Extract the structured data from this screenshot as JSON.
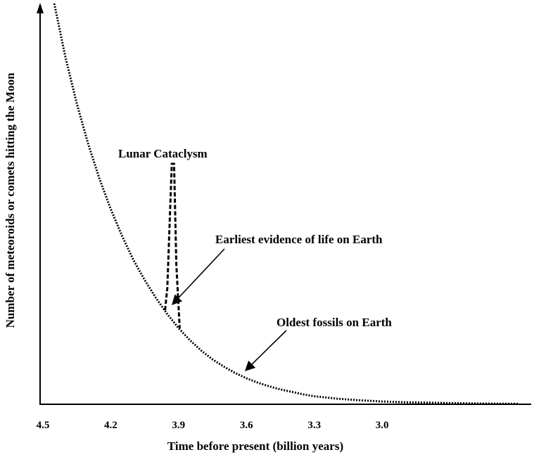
{
  "chart_data": {
    "type": "line",
    "title": "",
    "xlabel": "Time before present (billion years)",
    "ylabel": "Number of meteoroids or comets hitting the Moon",
    "xlim": [
      4.5,
      2.35
    ],
    "x_direction": "reversed",
    "x_ticks": [
      {
        "value": 4.5,
        "label": "4.5"
      },
      {
        "value": 4.2,
        "label": "4.2"
      },
      {
        "value": 3.9,
        "label": "3.9"
      },
      {
        "value": 3.6,
        "label": "3.6"
      },
      {
        "value": 3.3,
        "label": "3.3"
      },
      {
        "value": 3.0,
        "label": "3.0"
      }
    ],
    "y_ticks": "none",
    "grid": false,
    "legend": "none",
    "colors": {
      "line": "#000000",
      "background": "#ffffff"
    },
    "series": [
      {
        "style": "dotted",
        "points": [
          [
            4.45,
            1.0
          ],
          [
            4.4,
            0.865
          ],
          [
            4.35,
            0.75
          ],
          [
            4.3,
            0.65
          ],
          [
            4.25,
            0.563
          ],
          [
            4.2,
            0.487
          ],
          [
            4.15,
            0.42
          ],
          [
            4.1,
            0.36
          ],
          [
            4.05,
            0.31
          ],
          [
            4.0,
            0.265
          ],
          [
            3.95,
            0.225
          ],
          [
            3.9,
            0.19
          ],
          [
            3.85,
            0.16
          ],
          [
            3.8,
            0.134
          ],
          [
            3.75,
            0.112
          ],
          [
            3.7,
            0.094
          ],
          [
            3.65,
            0.078
          ],
          [
            3.6,
            0.065
          ],
          [
            3.55,
            0.054
          ],
          [
            3.5,
            0.045
          ],
          [
            3.45,
            0.037
          ],
          [
            3.4,
            0.031
          ],
          [
            3.35,
            0.025
          ],
          [
            3.3,
            0.02
          ],
          [
            3.2,
            0.014
          ],
          [
            3.1,
            0.01
          ],
          [
            3.0,
            0.007
          ],
          [
            2.9,
            0.005
          ],
          [
            2.8,
            0.004
          ],
          [
            2.6,
            0.002
          ],
          [
            2.4,
            0.001
          ]
        ]
      },
      {
        "style": "dashed",
        "points": [
          [
            3.96,
            0.235
          ],
          [
            3.95,
            0.29
          ],
          [
            3.93,
            0.6
          ],
          [
            3.92,
            0.6
          ],
          [
            3.91,
            0.35
          ],
          [
            3.895,
            0.19
          ]
        ]
      }
    ],
    "annotations": [
      {
        "text": "Lunar Cataclysm",
        "x": 3.91,
        "y": 0.6
      },
      {
        "text": "Earliest evidence of life on Earth",
        "x": 3.88,
        "y": 0.19
      },
      {
        "text": "Oldest fossils on Earth",
        "x": 3.42,
        "y": 0.06
      }
    ]
  }
}
